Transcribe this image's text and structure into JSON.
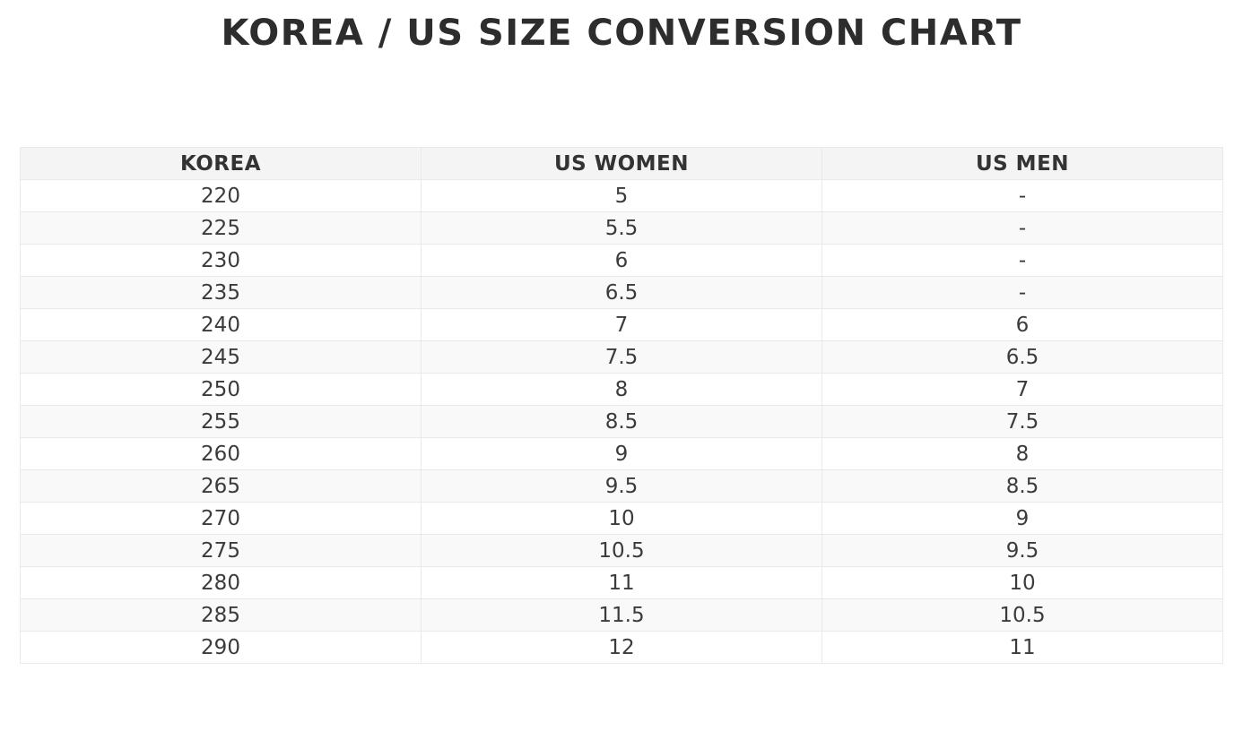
{
  "page": {
    "title": "KOREA / US SIZE CONVERSION CHART"
  },
  "colors": {
    "title_text": "#2d2d2d",
    "header_background": "#f4f4f4",
    "stripe_background": "#f9f9f9",
    "border": "#e9e9e9",
    "cell_text": "#3b3b3b"
  },
  "chart_data": {
    "type": "table",
    "title": "KOREA / US SIZE CONVERSION CHART",
    "columns": [
      "KOREA",
      "US WOMEN",
      "US MEN"
    ],
    "rows": [
      [
        "220",
        "5",
        "-"
      ],
      [
        "225",
        "5.5",
        "-"
      ],
      [
        "230",
        "6",
        "-"
      ],
      [
        "235",
        "6.5",
        "-"
      ],
      [
        "240",
        "7",
        "6"
      ],
      [
        "245",
        "7.5",
        "6.5"
      ],
      [
        "250",
        "8",
        "7"
      ],
      [
        "255",
        "8.5",
        "7.5"
      ],
      [
        "260",
        "9",
        "8"
      ],
      [
        "265",
        "9.5",
        "8.5"
      ],
      [
        "270",
        "10",
        "9"
      ],
      [
        "275",
        "10.5",
        "9.5"
      ],
      [
        "280",
        "11",
        "10"
      ],
      [
        "285",
        "11.5",
        "10.5"
      ],
      [
        "290",
        "12",
        "11"
      ]
    ],
    "layout": {
      "column_alignment": "center",
      "striped": true,
      "grid": true
    }
  }
}
